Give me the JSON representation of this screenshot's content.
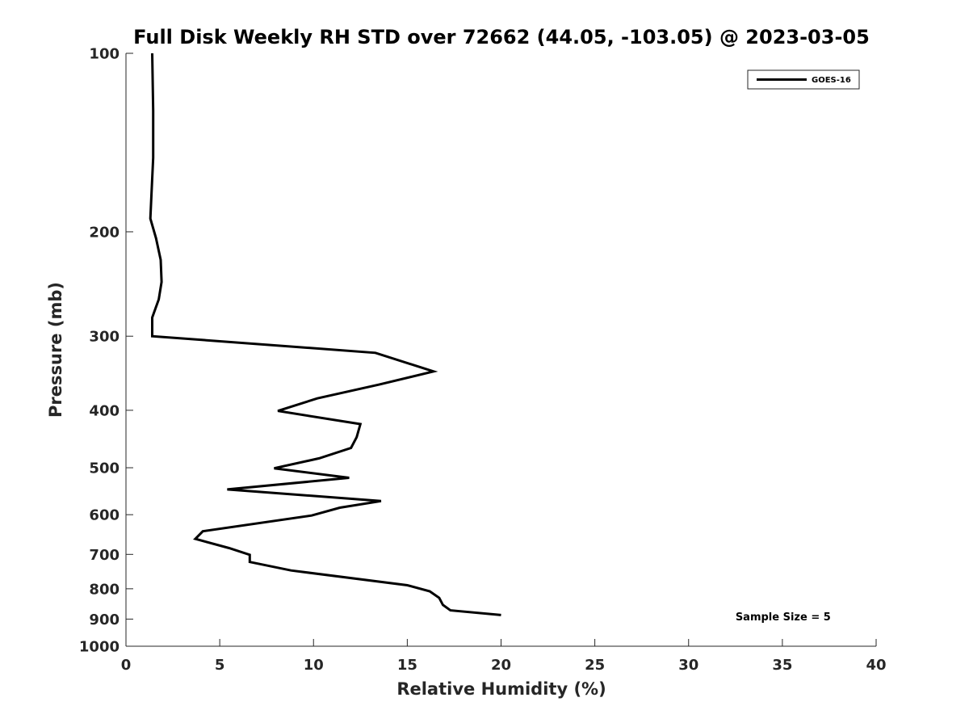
{
  "chart_data": {
    "type": "line",
    "title": "Full Disk Weekly RH STD over 72662 (44.05, -103.05) @ 2023-03-05",
    "xlabel": "Relative Humidity (%)",
    "ylabel": "Pressure (mb)",
    "xlim": [
      0,
      40
    ],
    "ylim": [
      100,
      1000
    ],
    "yscale": "log",
    "yreversed": true,
    "xticks": [
      0,
      5,
      10,
      15,
      20,
      25,
      30,
      35,
      40
    ],
    "yticks": [
      100,
      200,
      300,
      400,
      500,
      600,
      700,
      800,
      900,
      1000
    ],
    "grid": false,
    "legend_position": "top-right",
    "series": [
      {
        "name": "GOES-16",
        "color": "#000000",
        "points": [
          {
            "x": 1.4,
            "y": 100
          },
          {
            "x": 1.45,
            "y": 125
          },
          {
            "x": 1.45,
            "y": 150
          },
          {
            "x": 1.35,
            "y": 175
          },
          {
            "x": 1.3,
            "y": 190
          },
          {
            "x": 1.6,
            "y": 205
          },
          {
            "x": 1.85,
            "y": 223
          },
          {
            "x": 1.9,
            "y": 243
          },
          {
            "x": 1.75,
            "y": 260
          },
          {
            "x": 1.4,
            "y": 279
          },
          {
            "x": 1.4,
            "y": 300
          },
          {
            "x": 13.3,
            "y": 320
          },
          {
            "x": 16.4,
            "y": 344
          },
          {
            "x": 13.5,
            "y": 362
          },
          {
            "x": 10.2,
            "y": 382
          },
          {
            "x": 8.1,
            "y": 401
          },
          {
            "x": 12.5,
            "y": 422
          },
          {
            "x": 12.3,
            "y": 444
          },
          {
            "x": 12.0,
            "y": 463
          },
          {
            "x": 10.3,
            "y": 482
          },
          {
            "x": 7.9,
            "y": 501
          },
          {
            "x": 11.9,
            "y": 520
          },
          {
            "x": 5.4,
            "y": 544
          },
          {
            "x": 13.6,
            "y": 569
          },
          {
            "x": 11.4,
            "y": 584
          },
          {
            "x": 9.9,
            "y": 602
          },
          {
            "x": 4.1,
            "y": 640
          },
          {
            "x": 3.7,
            "y": 659
          },
          {
            "x": 5.5,
            "y": 683
          },
          {
            "x": 6.6,
            "y": 701
          },
          {
            "x": 6.6,
            "y": 721
          },
          {
            "x": 8.8,
            "y": 745
          },
          {
            "x": 15.0,
            "y": 789
          },
          {
            "x": 16.2,
            "y": 808
          },
          {
            "x": 16.7,
            "y": 829
          },
          {
            "x": 16.9,
            "y": 852
          },
          {
            "x": 17.3,
            "y": 870
          },
          {
            "x": 20.0,
            "y": 886
          }
        ]
      }
    ],
    "annotations": [
      {
        "text": "Sample Size = 5",
        "x": 32.5,
        "y": 905
      }
    ]
  }
}
